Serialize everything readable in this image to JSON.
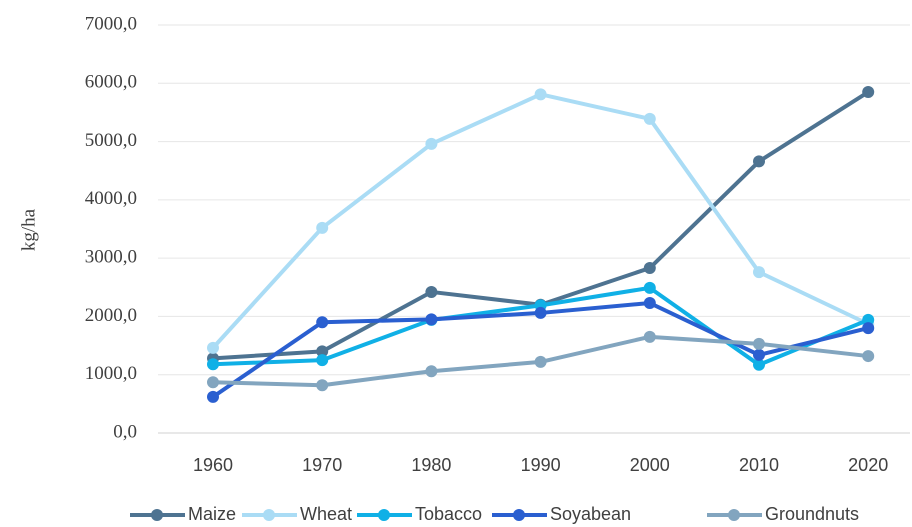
{
  "chart_data": {
    "type": "line",
    "y_label": "kg/ha",
    "categories": [
      "1960",
      "1970",
      "1980",
      "1990",
      "2000",
      "2010",
      "2020"
    ],
    "series": [
      {
        "name": "Maize",
        "color": "#4e7391",
        "values": [
          1280,
          1400,
          2420,
          2200,
          2830,
          4660,
          5850
        ]
      },
      {
        "name": "Wheat",
        "color": "#aadcf5",
        "values": [
          1460,
          3520,
          4960,
          5810,
          5390,
          2760,
          1870
        ]
      },
      {
        "name": "Tobacco",
        "color": "#10b0e6",
        "values": [
          1180,
          1250,
          1940,
          2190,
          2490,
          1170,
          1940
        ]
      },
      {
        "name": "Soyabean",
        "color": "#2a5fd0",
        "values": [
          620,
          1900,
          1950,
          2060,
          2230,
          1340,
          1800
        ]
      },
      {
        "name": "Groundnuts",
        "color": "#82a5bf",
        "values": [
          870,
          820,
          1060,
          1220,
          1650,
          1530,
          1320
        ]
      }
    ],
    "ylim": [
      0,
      7000
    ],
    "yticks": [
      {
        "value": 0,
        "label": "0,0"
      },
      {
        "value": 1000,
        "label": "1000,0"
      },
      {
        "value": 2000,
        "label": "2000,0"
      },
      {
        "value": 3000,
        "label": "3000,0"
      },
      {
        "value": 4000,
        "label": "4000,0"
      },
      {
        "value": 5000,
        "label": "5000,0"
      },
      {
        "value": 6000,
        "label": "6000,0"
      },
      {
        "value": 7000,
        "label": "7000,0"
      }
    ],
    "grid": true,
    "legend": "bottom"
  }
}
